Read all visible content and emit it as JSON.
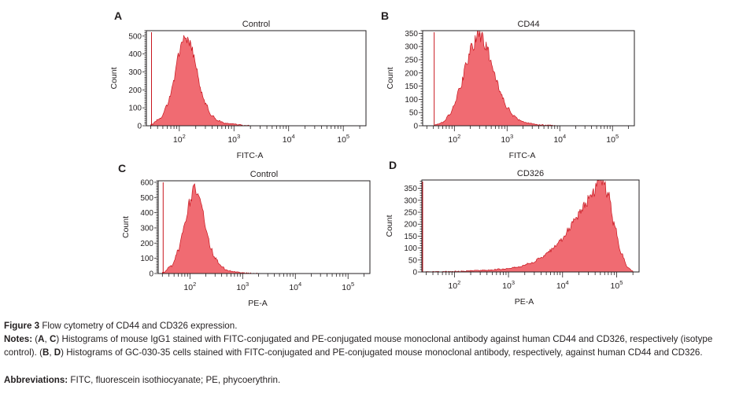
{
  "colors": {
    "fill": "#f06b72",
    "edge": "#c8161f",
    "axis": "#231f20"
  },
  "chart_data": [
    {
      "type": "area",
      "panel": "A",
      "title": "Control",
      "xlabel": "FITC-A",
      "ylabel": "Count",
      "xscale": "log",
      "xlim": [
        25,
        260000
      ],
      "ylim": [
        0,
        530
      ],
      "ytick_step": 10,
      "yticks": [
        0,
        100,
        200,
        300,
        400,
        500
      ],
      "xticks": [
        {
          "value": 100,
          "base": "10",
          "exp": "2"
        },
        {
          "value": 1000,
          "base": "10",
          "exp": "3"
        },
        {
          "value": 10000,
          "base": "10",
          "exp": "4"
        },
        {
          "value": 100000,
          "base": "10",
          "exp": "5"
        }
      ],
      "x": [
        30,
        45,
        60,
        80,
        100,
        120,
        140,
        170,
        200,
        250,
        300,
        400,
        500,
        700,
        1000,
        1500,
        2000
      ],
      "values": [
        5,
        40,
        110,
        260,
        400,
        470,
        500,
        430,
        330,
        200,
        120,
        55,
        28,
        14,
        8,
        3,
        0
      ]
    },
    {
      "type": "area",
      "panel": "B",
      "title": "CD44",
      "xlabel": "FITC-A",
      "ylabel": "Count",
      "xscale": "log",
      "xlim": [
        25,
        260000
      ],
      "ylim": [
        0,
        360
      ],
      "ytick_step": 10,
      "yticks": [
        0,
        50,
        100,
        150,
        200,
        250,
        300,
        350
      ],
      "xticks": [
        {
          "value": 100,
          "base": "10",
          "exp": "2"
        },
        {
          "value": 1000,
          "base": "10",
          "exp": "3"
        },
        {
          "value": 10000,
          "base": "10",
          "exp": "4"
        },
        {
          "value": 100000,
          "base": "10",
          "exp": "5"
        }
      ],
      "x": [
        40,
        60,
        80,
        100,
        130,
        170,
        220,
        280,
        330,
        400,
        500,
        650,
        800,
        1000,
        1300,
        1800,
        2500,
        4000,
        6000,
        10000
      ],
      "values": [
        2,
        12,
        40,
        80,
        150,
        230,
        300,
        350,
        340,
        300,
        240,
        160,
        110,
        70,
        40,
        20,
        10,
        4,
        2,
        0
      ]
    },
    {
      "type": "area",
      "panel": "C",
      "title": "Control",
      "xlabel": "PE-A",
      "ylabel": "Count",
      "xscale": "log",
      "xlim": [
        25,
        260000
      ],
      "ylim": [
        0,
        610
      ],
      "ytick_step": 10,
      "yticks": [
        0,
        100,
        200,
        300,
        400,
        500,
        600
      ],
      "xticks": [
        {
          "value": 100,
          "base": "10",
          "exp": "2"
        },
        {
          "value": 1000,
          "base": "10",
          "exp": "3"
        },
        {
          "value": 10000,
          "base": "10",
          "exp": "4"
        },
        {
          "value": 100000,
          "base": "10",
          "exp": "5"
        }
      ],
      "x": [
        30,
        45,
        60,
        80,
        100,
        120,
        140,
        170,
        200,
        250,
        300,
        400,
        500,
        700,
        1000,
        1500,
        2000
      ],
      "values": [
        5,
        50,
        150,
        330,
        480,
        560,
        540,
        420,
        300,
        170,
        100,
        45,
        22,
        10,
        5,
        2,
        0
      ]
    },
    {
      "type": "area",
      "panel": "D",
      "title": "CD326",
      "xlabel": "PE-A",
      "ylabel": "Count",
      "xscale": "log",
      "xlim": [
        25,
        260000
      ],
      "ylim": [
        0,
        385
      ],
      "ytick_step": 10,
      "yticks": [
        0,
        50,
        100,
        150,
        200,
        250,
        300,
        350
      ],
      "xticks": [
        {
          "value": 100,
          "base": "10",
          "exp": "2"
        },
        {
          "value": 1000,
          "base": "10",
          "exp": "3"
        },
        {
          "value": 10000,
          "base": "10",
          "exp": "4"
        },
        {
          "value": 100000,
          "base": "10",
          "exp": "5"
        }
      ],
      "x": [
        25,
        100,
        300,
        800,
        1500,
        2500,
        4000,
        6000,
        9000,
        13000,
        18000,
        25000,
        35000,
        45000,
        55000,
        70000,
        90000,
        120000,
        160000,
        200000
      ],
      "values": [
        0,
        2,
        6,
        12,
        20,
        35,
        60,
        90,
        130,
        180,
        230,
        280,
        330,
        370,
        380,
        320,
        200,
        80,
        20,
        3
      ]
    }
  ],
  "caption": {
    "figure_label": "Figure 3",
    "figure_text": " Flow cytometry of CD44 and CD326 expression.",
    "notes_label": "Notes:",
    "notes_paren_open": " (",
    "notes_ref1": "A",
    "notes_comma1": ", ",
    "notes_ref2": "C",
    "notes_text1": ") Histograms of mouse IgG1 stained with FITC-conjugated and PE-conjugated mouse monoclonal antibody against human CD44 and CD326, respectively (isotype control). (",
    "notes_ref3": "B",
    "notes_comma2": ", ",
    "notes_ref4": "D",
    "notes_text2": ") Histograms of GC-030-35 cells stained with FITC-conjugated and PE-conjugated mouse monoclonal antibody, respectively, against human CD44 and CD326.",
    "abbr_label": "Abbreviations:",
    "abbr_text": " FITC, fluorescein isothiocyanate; PE, phycoerythrin."
  }
}
